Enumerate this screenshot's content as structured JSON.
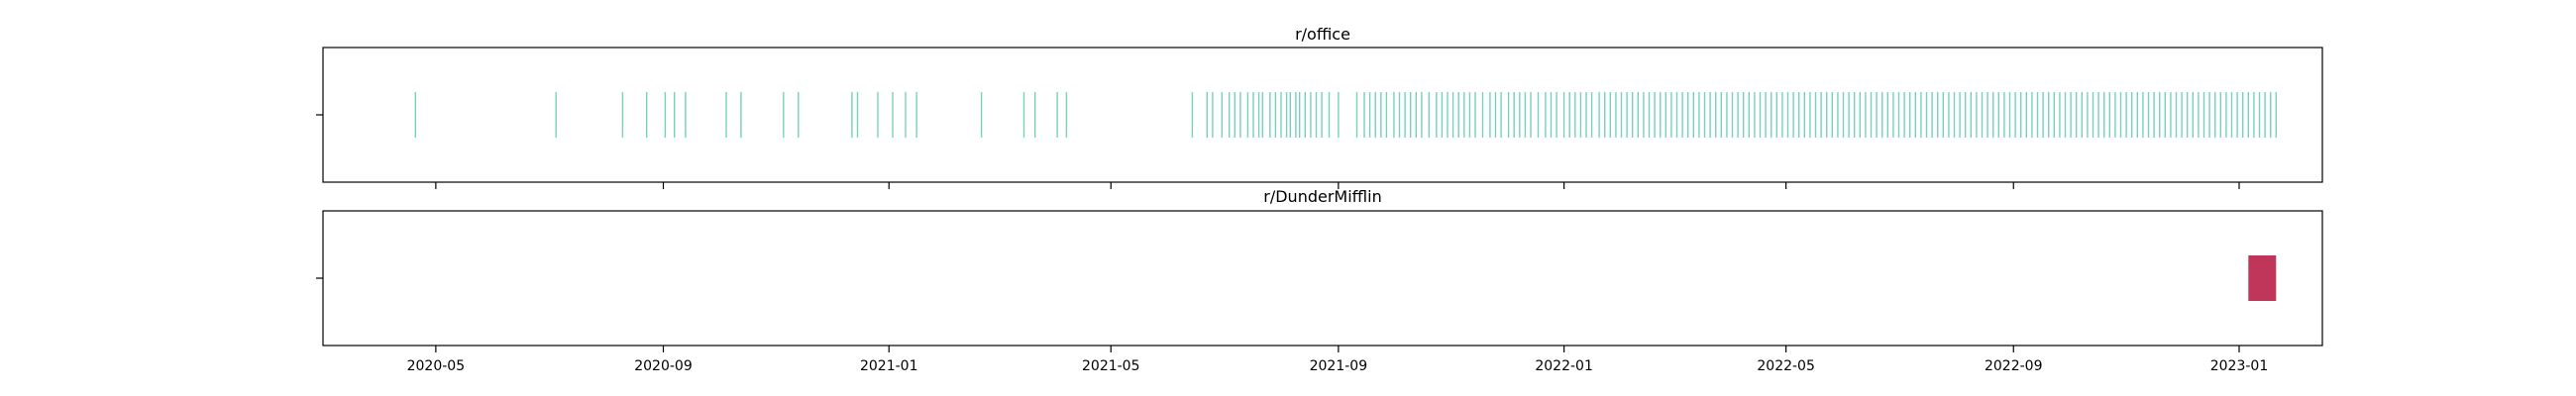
{
  "chart_data": [
    {
      "type": "event_timeline",
      "title": "r/office",
      "color": "#5ecbad",
      "xlim": [
        "2020-03-01",
        "2023-02-15"
      ],
      "x_ticks": [
        "2020-05",
        "2020-09",
        "2021-01",
        "2021-05",
        "2021-09",
        "2022-01",
        "2022-05",
        "2022-09",
        "2023-01"
      ],
      "grid": false,
      "events": [
        "2020-04-20",
        "2020-07-05",
        "2020-08-10",
        "2020-08-23",
        "2020-09-02",
        "2020-09-07",
        "2020-09-13",
        "2020-10-05",
        "2020-10-13",
        "2020-11-05",
        "2020-11-13",
        "2020-12-12",
        "2020-12-15",
        "2020-12-26",
        "2021-01-03",
        "2021-01-10",
        "2021-01-16",
        "2021-02-20",
        "2021-03-15",
        "2021-03-21",
        "2021-04-02",
        "2021-04-07",
        "2021-06-14",
        "2021-06-22",
        "2021-06-25",
        "2021-06-30",
        "2021-07-04",
        "2021-07-07",
        "2021-07-10",
        "2021-07-14",
        "2021-07-17",
        "2021-07-20",
        "2021-07-22",
        "2021-07-26",
        "2021-07-29",
        "2021-08-01",
        "2021-08-04",
        "2021-08-06",
        "2021-08-09",
        "2021-08-11",
        "2021-08-14",
        "2021-08-17",
        "2021-08-20",
        "2021-08-23",
        "2021-08-27",
        "2021-09-01",
        "2021-09-11",
        "2021-09-15",
        "2021-09-18",
        "2021-09-21",
        "2021-09-24",
        "2021-09-27",
        "2021-10-01",
        "2021-10-04",
        "2021-10-07",
        "2021-10-10",
        "2021-10-13",
        "2021-10-16",
        "2021-10-20",
        "2021-10-24",
        "2021-10-27",
        "2021-10-30",
        "2021-11-02",
        "2021-11-05",
        "2021-11-08",
        "2021-11-11",
        "2021-11-14",
        "2021-11-18",
        "2021-11-22",
        "2021-11-25",
        "2021-11-28",
        "2021-12-02",
        "2021-12-05",
        "2021-12-08",
        "2021-12-11",
        "2021-12-14",
        "2021-12-18",
        "2021-12-22",
        "2021-12-25",
        "2021-12-28",
        "2022-01-01",
        "2022-01-04",
        "2022-01-07",
        "2022-01-10",
        "2022-01-13",
        "2022-01-16",
        "2022-01-20",
        "2022-01-23",
        "2022-01-26",
        "2022-01-29",
        "2022-02-01",
        "2022-02-04",
        "2022-02-07",
        "2022-02-10",
        "2022-02-13",
        "2022-02-16",
        "2022-02-19",
        "2022-02-22",
        "2022-02-25",
        "2022-02-28",
        "2022-03-03",
        "2022-03-06",
        "2022-03-09",
        "2022-03-12",
        "2022-03-15",
        "2022-03-18",
        "2022-03-21",
        "2022-03-24",
        "2022-03-27",
        "2022-03-30",
        "2022-04-02",
        "2022-04-05",
        "2022-04-08",
        "2022-04-11",
        "2022-04-14",
        "2022-04-17",
        "2022-04-20",
        "2022-04-23",
        "2022-04-26",
        "2022-04-29",
        "2022-05-02",
        "2022-05-05",
        "2022-05-08",
        "2022-05-11",
        "2022-05-14",
        "2022-05-17",
        "2022-05-20",
        "2022-05-23",
        "2022-05-26",
        "2022-05-29",
        "2022-06-01",
        "2022-06-04",
        "2022-06-07",
        "2022-06-10",
        "2022-06-13",
        "2022-06-16",
        "2022-06-19",
        "2022-06-22",
        "2022-06-25",
        "2022-06-28",
        "2022-07-01",
        "2022-07-04",
        "2022-07-07",
        "2022-07-10",
        "2022-07-13",
        "2022-07-16",
        "2022-07-19",
        "2022-07-22",
        "2022-07-25",
        "2022-07-28",
        "2022-07-31",
        "2022-08-03",
        "2022-08-06",
        "2022-08-09",
        "2022-08-12",
        "2022-08-15",
        "2022-08-18",
        "2022-08-21",
        "2022-08-24",
        "2022-08-27",
        "2022-08-30",
        "2022-09-02",
        "2022-09-05",
        "2022-09-08",
        "2022-09-11",
        "2022-09-14",
        "2022-09-17",
        "2022-09-20",
        "2022-09-23",
        "2022-09-26",
        "2022-09-29",
        "2022-10-02",
        "2022-10-05",
        "2022-10-08",
        "2022-10-11",
        "2022-10-14",
        "2022-10-17",
        "2022-10-20",
        "2022-10-23",
        "2022-10-26",
        "2022-10-29",
        "2022-11-01",
        "2022-11-04",
        "2022-11-07",
        "2022-11-10",
        "2022-11-13",
        "2022-11-16",
        "2022-11-19",
        "2022-11-22",
        "2022-11-25",
        "2022-11-28",
        "2022-12-01",
        "2022-12-04",
        "2022-12-07",
        "2022-12-10",
        "2022-12-13",
        "2022-12-16",
        "2022-12-19",
        "2022-12-22",
        "2022-12-25",
        "2022-12-28",
        "2022-12-31",
        "2023-01-03",
        "2023-01-06",
        "2023-01-09",
        "2023-01-12",
        "2023-01-15",
        "2023-01-18",
        "2023-01-21"
      ]
    },
    {
      "type": "event_timeline",
      "title": "r/DunderMifflin",
      "color": "#c0365a",
      "xlim": [
        "2020-03-01",
        "2023-02-15"
      ],
      "x_ticks": [
        "2020-05",
        "2020-09",
        "2021-01",
        "2021-05",
        "2021-09",
        "2022-01",
        "2022-05",
        "2022-09",
        "2023-01"
      ],
      "grid": false,
      "event_span": [
        "2023-01-06",
        "2023-01-21"
      ]
    }
  ]
}
